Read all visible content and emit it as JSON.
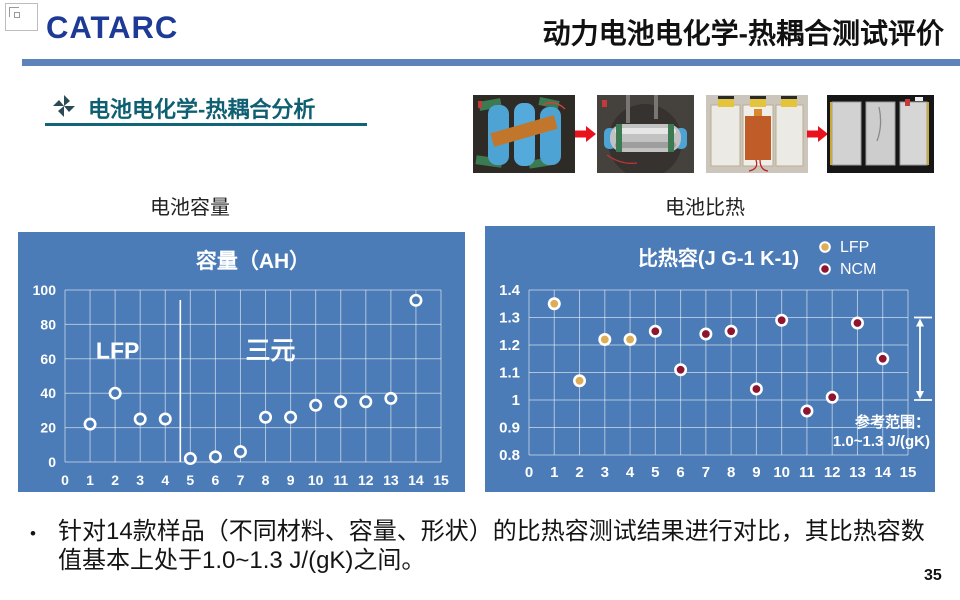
{
  "header": {
    "logo_text": "CATARC",
    "title": "动力电池电化学-热耦合测试评价"
  },
  "section": {
    "title": "电池电化学-热耦合分析"
  },
  "photo_strip": {
    "photos": [
      "cylindrical-cells-photo",
      "foil-wrapped-cylinder-photo",
      "pouch-cells-heater-photo",
      "foil-wrapped-pouch-photo"
    ]
  },
  "chart_labels": {
    "left": "电池容量",
    "right": "电池比热"
  },
  "chart_data": [
    {
      "type": "scatter",
      "title": "容量（AH）",
      "x": [
        1,
        2,
        3,
        4,
        5,
        6,
        7,
        8,
        9,
        10,
        11,
        12,
        13,
        14
      ],
      "values": [
        22,
        40,
        25,
        25,
        2,
        3,
        6,
        26,
        26,
        33,
        35,
        35,
        37,
        94
      ],
      "xlim": [
        0,
        15
      ],
      "ylim": [
        0,
        100
      ],
      "xticks": [
        0,
        1,
        2,
        3,
        4,
        5,
        6,
        7,
        8,
        9,
        10,
        11,
        12,
        13,
        14,
        15
      ],
      "yticks": [
        0,
        20,
        40,
        60,
        80,
        100
      ],
      "ytick_labels": [
        "0",
        "20",
        "40",
        "60",
        "80",
        "100"
      ],
      "grid": true,
      "marker_style": "hollow",
      "divider_x": 4.6,
      "annotations": [
        {
          "text": "LFP",
          "x": 2.1,
          "y": 65,
          "size": 23
        },
        {
          "text": "三元",
          "x": 8.2,
          "y": 65,
          "size": 25
        }
      ]
    },
    {
      "type": "scatter",
      "title": "比热容(J G-1 K-1)",
      "series": [
        {
          "name": "LFP",
          "color": "#dcae57",
          "x": [
            1,
            2,
            3,
            4
          ],
          "values": [
            1.35,
            1.07,
            1.22,
            1.22
          ]
        },
        {
          "name": "NCM",
          "color": "#8e1430",
          "x": [
            5,
            6,
            7,
            8,
            9,
            10,
            11,
            12,
            13,
            14
          ],
          "values": [
            1.25,
            1.11,
            1.24,
            1.25,
            1.04,
            1.29,
            0.96,
            1.01,
            1.28,
            1.15
          ]
        }
      ],
      "xlim": [
        0,
        15
      ],
      "ylim": [
        0.8,
        1.4
      ],
      "xticks": [
        0,
        1,
        2,
        3,
        4,
        5,
        6,
        7,
        8,
        9,
        10,
        11,
        12,
        13,
        14,
        15
      ],
      "yticks": [
        0.8,
        0.9,
        1.0,
        1.1,
        1.2,
        1.3,
        1.4
      ],
      "ytick_labels": [
        "0.8",
        "0.9",
        "1",
        "1.1",
        "1.2",
        "1.3",
        "1.4"
      ],
      "grid": true,
      "legend_position": "top-right",
      "range_arrow": {
        "from": 1.0,
        "to": 1.3
      },
      "range_note": [
        "参考范围：",
        "1.0~1.3 J/(gK)"
      ]
    }
  ],
  "bullet": {
    "marker": "•",
    "text": "针对14款样品（不同材料、容量、形状）的比热容测试结果进行对比，其比热容数值基本上处于1.0~1.3 J/(gK)之间。"
  },
  "page_number": "35",
  "colors": {
    "panel_blue": "#4c7cb7",
    "grid_line": "rgba(255,255,255,0.55)",
    "accent_bar": "#5d83ba",
    "logo_blue": "#1c3a96",
    "teal": "#0e5f72",
    "arrow_red": "#e8111c",
    "lfp_gold": "#dcae57",
    "ncm_maroon": "#8e1430"
  }
}
